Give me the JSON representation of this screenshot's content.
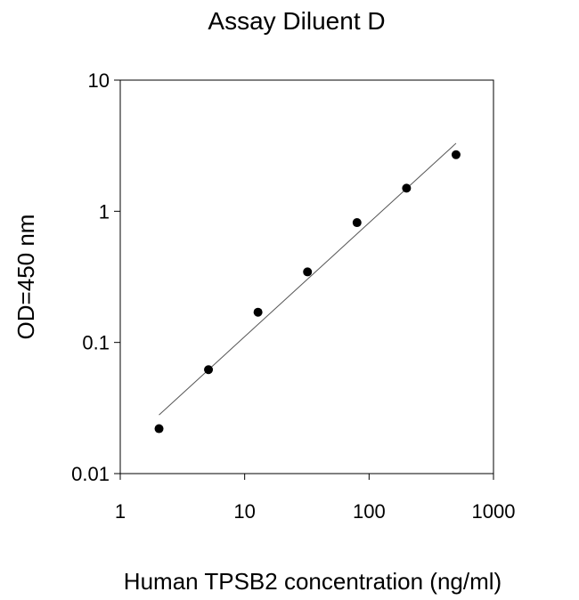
{
  "chart_data": {
    "type": "scatter",
    "title": "Assay Diluent D",
    "xlabel": "Human TPSB2 concentration (ng/ml)",
    "ylabel": "OD=450 nm",
    "x_scale": "log",
    "y_scale": "log",
    "xlim": [
      1,
      1000
    ],
    "ylim": [
      0.01,
      10
    ],
    "x_ticks": [
      1,
      10,
      100,
      1000
    ],
    "x_tick_labels": [
      "1",
      "10",
      "100",
      "1000"
    ],
    "y_ticks": [
      0.01,
      0.1,
      1,
      10
    ],
    "y_tick_labels": [
      "0.01",
      "0.1",
      "1",
      "10"
    ],
    "grid": false,
    "legend": "none",
    "series": [
      {
        "x": [
          2.05,
          5.12,
          12.8,
          32,
          80,
          200,
          500
        ],
        "y": [
          0.022,
          0.062,
          0.17,
          0.345,
          0.82,
          1.5,
          2.7
        ],
        "color": "#000000"
      }
    ],
    "fit_line": {
      "x": [
        2.05,
        500
      ],
      "y": [
        0.028,
        3.3
      ],
      "color": "#555555"
    }
  }
}
